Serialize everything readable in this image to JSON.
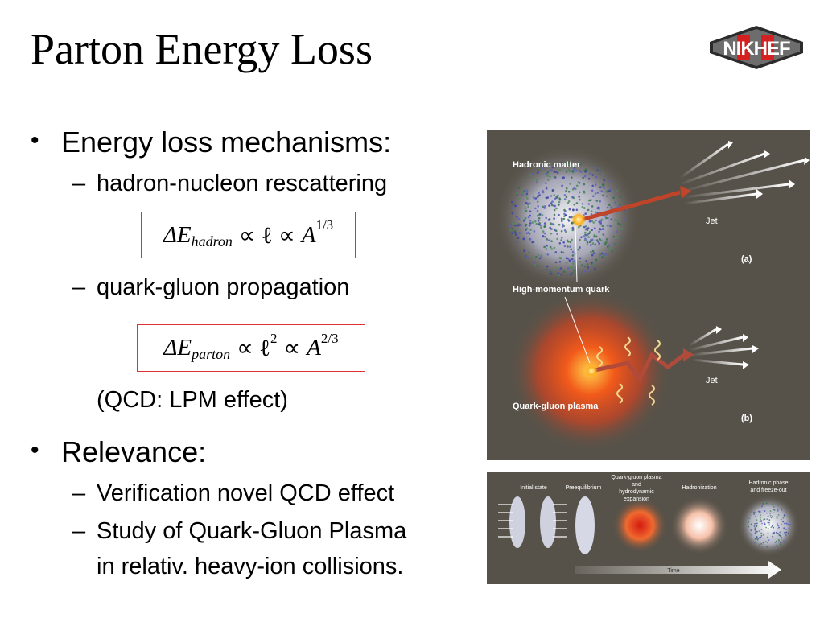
{
  "slide": {
    "title": "Parton Energy Loss",
    "logo_text": "NIKHEF"
  },
  "bullets": [
    {
      "text": "Energy loss mechanisms:"
    },
    {
      "text": "Relevance:"
    }
  ],
  "sub_bullets": {
    "rescattering": "hadron-nucleon rescattering",
    "propagation": "quark-gluon propagation",
    "lpm_note": "(QCD: LPM effect)",
    "verification": "Verification novel QCD effect",
    "qgp_line1": "Study of Quark-Gluon Plasma",
    "qgp_line2": "in relativ. heavy-ion collisions."
  },
  "formulas": {
    "hadron": {
      "delta": "ΔE",
      "subscript": "hadron",
      "mid": "∝ ℓ ∝",
      "base": "A",
      "exponent": "1/3"
    },
    "parton": {
      "delta": "ΔE",
      "subscript": "parton",
      "mid": "∝ ℓ",
      "mid_exp": "2",
      "mid2": "∝",
      "base": "A",
      "exponent": "2/3"
    }
  },
  "figure_top": {
    "hadronic_matter": "Hadronic matter",
    "jet_a": "Jet",
    "panel_a": "(a)",
    "high_momentum_quark": "High-momentum quark",
    "jet_b": "Jet",
    "quark_gluon_plasma": "Quark-gluon plasma",
    "panel_b": "(b)"
  },
  "figure_bottom": {
    "initial_state": "Initial state",
    "preequilibrium": "Preequilibrium",
    "qgp_line1": "Quark-gluon plasma",
    "qgp_line2": "and",
    "qgp_line3": "hydrodynamic",
    "qgp_line4": "expansion",
    "hadronization": "Hadronization",
    "hadronic_phase_line1": "Hadronic phase",
    "hadronic_phase_line2": "and freeze-out",
    "time": "Time"
  },
  "colors": {
    "formula_border": "#e03030",
    "panel_background": "#575249",
    "logo_red": "#d42020"
  }
}
